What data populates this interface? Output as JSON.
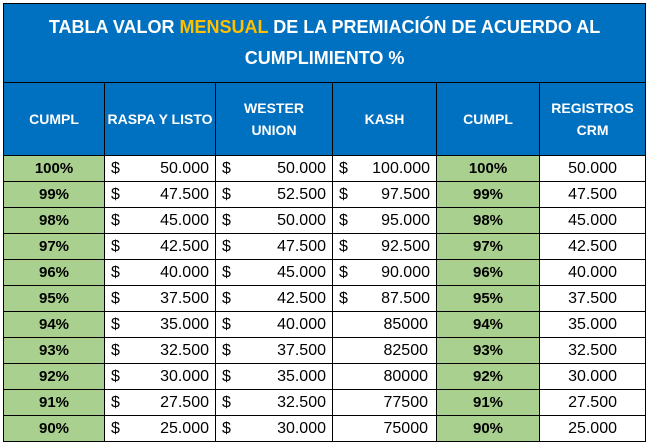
{
  "title": {
    "part1": "TABLA VALOR ",
    "highlight": "MENSUAL",
    "part2": " DE LA PREMIACIÓN DE ACUERDO AL",
    "line2": "CUMPLIMIENTO %"
  },
  "colors": {
    "header_blue": "#0070c0",
    "accent_yellow": "#ffc000",
    "pct_green": "#a9d08e"
  },
  "headers": [
    "CUMPL",
    "RASPA Y LISTO",
    "WESTER UNION",
    "KASH",
    "CUMPL",
    "REGISTROS CRM"
  ],
  "currency_symbol": "$",
  "rows": [
    {
      "cumpl": "100%",
      "raspa": "50.000",
      "wester": "50.000",
      "kash": "$ 100.000",
      "cumpl2": "100%",
      "crm": "50.000"
    },
    {
      "cumpl": "99%",
      "raspa": "47.500",
      "wester": "52.500",
      "kash": "$ 97.500",
      "cumpl2": "99%",
      "crm": "47.500"
    },
    {
      "cumpl": "98%",
      "raspa": "45.000",
      "wester": "50.000",
      "kash": "$ 95.000",
      "cumpl2": "98%",
      "crm": "45.000"
    },
    {
      "cumpl": "97%",
      "raspa": "42.500",
      "wester": "47.500",
      "kash": "$ 92.500",
      "cumpl2": "97%",
      "crm": "42.500"
    },
    {
      "cumpl": "96%",
      "raspa": "40.000",
      "wester": "45.000",
      "kash": "$ 90.000",
      "cumpl2": "96%",
      "crm": "40.000"
    },
    {
      "cumpl": "95%",
      "raspa": "37.500",
      "wester": "42.500",
      "kash": "$ 87.500",
      "cumpl2": "95%",
      "crm": "37.500"
    },
    {
      "cumpl": "94%",
      "raspa": "35.000",
      "wester": "40.000",
      "kash": "85000",
      "cumpl2": "94%",
      "crm": "35.000"
    },
    {
      "cumpl": "93%",
      "raspa": "32.500",
      "wester": "37.500",
      "kash": "82500",
      "cumpl2": "93%",
      "crm": "32.500"
    },
    {
      "cumpl": "92%",
      "raspa": "30.000",
      "wester": "35.000",
      "kash": "80000",
      "cumpl2": "92%",
      "crm": "30.000"
    },
    {
      "cumpl": "91%",
      "raspa": "27.500",
      "wester": "32.500",
      "kash": "77500",
      "cumpl2": "91%",
      "crm": "27.500"
    },
    {
      "cumpl": "90%",
      "raspa": "25.000",
      "wester": "30.000",
      "kash": "75000",
      "cumpl2": "90%",
      "crm": "25.000"
    }
  ]
}
